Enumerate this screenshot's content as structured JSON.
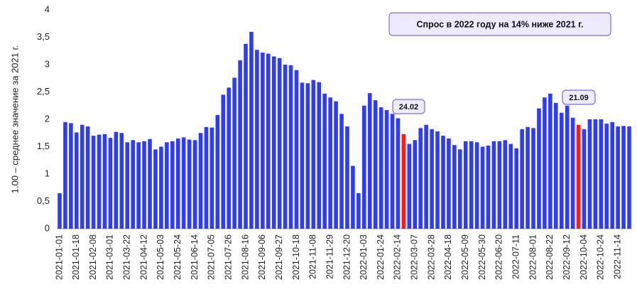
{
  "chart_data": {
    "type": "bar",
    "y_label": "1.00 – среднее значение за 2021 г.",
    "annotations": [
      "Спрос в 2022 году на 14% ниже 2021 г.",
      "24.02",
      "21.09"
    ],
    "categories": [
      "2021-01-01",
      null,
      null,
      "2021-01-18",
      null,
      null,
      "2021-02-08",
      null,
      null,
      "2021-03-01",
      null,
      null,
      "2021-03-22",
      null,
      null,
      "2021-04-12",
      null,
      null,
      "2021-05-03",
      null,
      null,
      "2021-05-24",
      null,
      null,
      "2021-06-14",
      null,
      null,
      "2021-07-05",
      null,
      null,
      "2021-07-26",
      null,
      null,
      "2021-08-16",
      null,
      null,
      "2021-09-06",
      null,
      null,
      "2021-09-27",
      null,
      null,
      "2021-10-18",
      null,
      null,
      "2021-11-08",
      null,
      null,
      "2021-11-29",
      null,
      null,
      "2021-12-20",
      null,
      null,
      "2022-01-03",
      null,
      null,
      "2022-01-24",
      null,
      null,
      "2022-02-14",
      null,
      null,
      "2022-03-07",
      null,
      null,
      "2022-03-28",
      null,
      null,
      "2022-04-18",
      null,
      null,
      "2022-05-09",
      null,
      null,
      "2022-05-30",
      null,
      null,
      "2022-06-20",
      null,
      null,
      "2022-07-11",
      null,
      null,
      "2022-08-01",
      null,
      null,
      "2022-08-22",
      null,
      null,
      "2022-09-12",
      null,
      null,
      "2022-10-04",
      null,
      null,
      "2022-10-24",
      null,
      null,
      "2022-11-14",
      null,
      null
    ],
    "values": [
      0.65,
      1.95,
      1.93,
      1.76,
      1.9,
      1.87,
      1.7,
      1.72,
      1.73,
      1.66,
      1.77,
      1.75,
      1.58,
      1.62,
      1.58,
      1.6,
      1.64,
      1.45,
      1.5,
      1.58,
      1.6,
      1.65,
      1.67,
      1.63,
      1.62,
      1.75,
      1.86,
      1.85,
      2.08,
      2.45,
      2.58,
      2.76,
      3.08,
      3.38,
      3.6,
      3.27,
      3.22,
      3.2,
      3.15,
      3.12,
      3.0,
      2.99,
      2.9,
      2.67,
      2.66,
      2.72,
      2.68,
      2.47,
      2.4,
      2.33,
      2.1,
      1.87,
      1.15,
      0.65,
      2.25,
      2.48,
      2.35,
      2.22,
      2.17,
      2.1,
      2.02,
      1.73,
      1.55,
      1.62,
      1.84,
      1.9,
      1.82,
      1.78,
      1.7,
      1.65,
      1.53,
      1.45,
      1.6,
      1.6,
      1.58,
      1.5,
      1.52,
      1.6,
      1.6,
      1.62,
      1.55,
      1.47,
      1.82,
      1.86,
      1.84,
      2.2,
      2.4,
      2.47,
      2.3,
      2.12,
      2.25,
      2.03,
      1.9,
      1.82,
      2.0,
      2.0,
      2.0,
      1.92,
      1.95,
      1.87,
      1.88,
      1.87
    ],
    "colors": [
      "#2e3cf5",
      "#2e3cf5",
      "#2e3cf5",
      "#2e3cf5",
      "#2e3cf5",
      "#2e3cf5",
      "#2e3cf5",
      "#2e3cf5",
      "#2e3cf5",
      "#2e3cf5",
      "#2e3cf5",
      "#2e3cf5",
      "#2e3cf5",
      "#2e3cf5",
      "#2e3cf5",
      "#2e3cf5",
      "#2e3cf5",
      "#2e3cf5",
      "#2e3cf5",
      "#2e3cf5",
      "#2e3cf5",
      "#2e3cf5",
      "#2e3cf5",
      "#2e3cf5",
      "#2e3cf5",
      "#2e3cf5",
      "#2e3cf5",
      "#2e3cf5",
      "#2e3cf5",
      "#2e3cf5",
      "#2e3cf5",
      "#2e3cf5",
      "#2e3cf5",
      "#2e3cf5",
      "#2e3cf5",
      "#2e3cf5",
      "#2e3cf5",
      "#2e3cf5",
      "#2e3cf5",
      "#2e3cf5",
      "#2e3cf5",
      "#2e3cf5",
      "#2e3cf5",
      "#2e3cf5",
      "#2e3cf5",
      "#2e3cf5",
      "#2e3cf5",
      "#2e3cf5",
      "#2e3cf5",
      "#2e3cf5",
      "#2e3cf5",
      "#2e3cf5",
      "#2e3cf5",
      "#2e3cf5",
      "#2e3cf5",
      "#2e3cf5",
      "#2e3cf5",
      "#2e3cf5",
      "#2e3cf5",
      "#2e3cf5",
      "#2e3cf5",
      "#ff1a1a",
      "#2e3cf5",
      "#2e3cf5",
      "#2e3cf5",
      "#2e3cf5",
      "#2e3cf5",
      "#2e3cf5",
      "#2e3cf5",
      "#2e3cf5",
      "#2e3cf5",
      "#2e3cf5",
      "#2e3cf5",
      "#2e3cf5",
      "#2e3cf5",
      "#2e3cf5",
      "#2e3cf5",
      "#2e3cf5",
      "#2e3cf5",
      "#2e3cf5",
      "#2e3cf5",
      "#2e3cf5",
      "#2e3cf5",
      "#2e3cf5",
      "#2e3cf5",
      "#2e3cf5",
      "#2e3cf5",
      "#2e3cf5",
      "#2e3cf5",
      "#2e3cf5",
      "#2e3cf5",
      "#2e3cf5",
      "#ff1a1a",
      "#2e3cf5",
      "#2e3cf5",
      "#2e3cf5",
      "#2e3cf5",
      "#2e3cf5",
      "#2e3cf5",
      "#2e3cf5",
      "#2e3cf5",
      "#2e3cf5"
    ],
    "ylim": [
      0,
      4
    ],
    "yticks": [
      0,
      {
        "value": 0.5,
        "label": "0,5"
      },
      1,
      {
        "value": 1.5,
        "label": "1,5"
      },
      2,
      {
        "value": 2.5,
        "label": "2,5"
      },
      3,
      {
        "value": 3.5,
        "label": "3,5"
      },
      4
    ],
    "grid": false
  }
}
